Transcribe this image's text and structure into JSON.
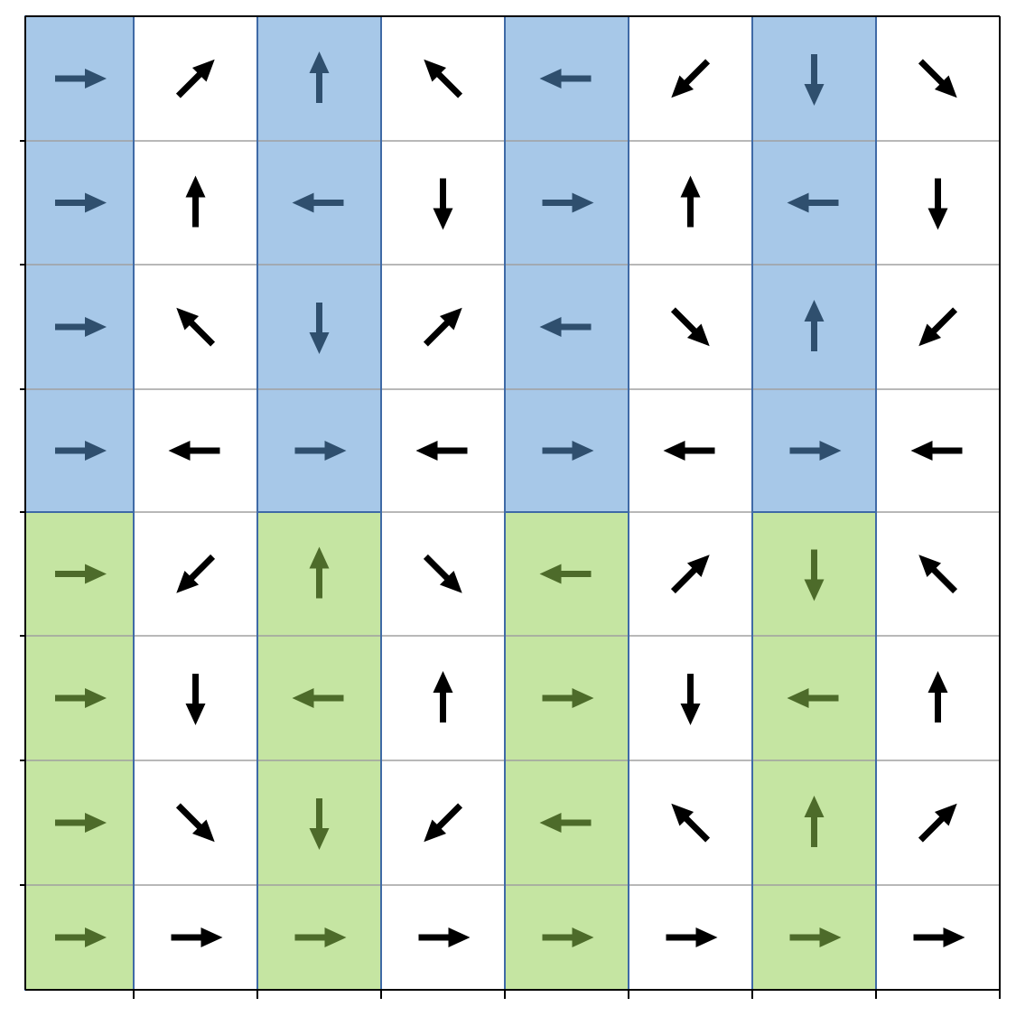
{
  "diagram": {
    "rows": 8,
    "cols": 8,
    "colors": {
      "blue_fill": "#a7c8e8",
      "blue_border": "#3f6aa6",
      "blue_arrow": "#2f4f6e",
      "green_fill": "#c5e5a2",
      "green_border": "#3f6aa6",
      "green_arrow": "#4d6b2a",
      "black_arrow": "#000000",
      "grid": "#a0a0a0"
    },
    "highlight_columns": [
      0,
      2,
      4,
      6
    ],
    "highlight_blocks": [
      {
        "fill": "blue",
        "rows": [
          0,
          3
        ]
      },
      {
        "fill": "green",
        "rows": [
          4,
          7
        ]
      }
    ],
    "arrow_directions": [
      [
        "E",
        "NE",
        "N",
        "NW",
        "W",
        "SW",
        "S",
        "SE"
      ],
      [
        "E",
        "N",
        "W",
        "S",
        "E",
        "N",
        "W",
        "S"
      ],
      [
        "E",
        "NW",
        "S",
        "NE",
        "W",
        "SE",
        "N",
        "SW"
      ],
      [
        "E",
        "W",
        "E",
        "W",
        "E",
        "W",
        "E",
        "W"
      ],
      [
        "E",
        "SW",
        "N",
        "SE",
        "W",
        "NE",
        "S",
        "NW"
      ],
      [
        "E",
        "S",
        "W",
        "N",
        "E",
        "S",
        "W",
        "N"
      ],
      [
        "E",
        "SE",
        "S",
        "SW",
        "W",
        "NW",
        "N",
        "NE"
      ],
      [
        "E",
        "E",
        "E",
        "E",
        "E",
        "E",
        "E",
        "E"
      ]
    ]
  }
}
